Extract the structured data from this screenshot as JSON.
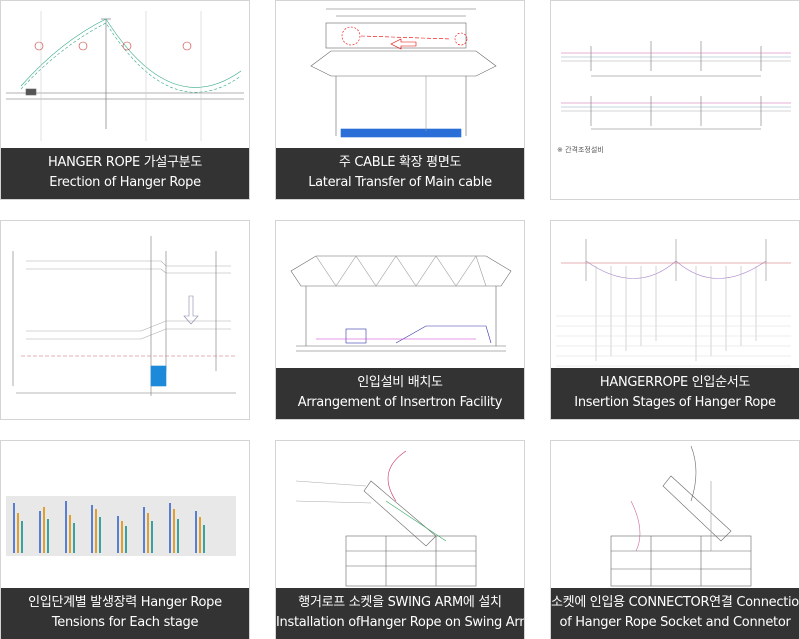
{
  "items": [
    {
      "caption": [
        "HANGER ROPE 가설구분도",
        "Erection of Hanger Rope"
      ]
    },
    {
      "caption": [
        "주 CABLE 확장 평면도",
        "Lateral Transfer of Main cable"
      ]
    },
    {
      "note": "※ 간격조정설비"
    },
    {},
    {
      "caption": [
        "인입설비 배치도",
        "Arrangement of Insertron Facility"
      ]
    },
    {
      "caption": [
        "HANGERROPE 인입순서도",
        "Insertion Stages of Hanger Rope"
      ]
    },
    {
      "caption": [
        "인입단계별 발생장력 Hanger Rope",
        "Tensions for Each stage"
      ]
    },
    {
      "caption": [
        "행거로프 소켓을 SWING ARM에 설치",
        "Installation ofHanger Rope on Swing Arm"
      ]
    },
    {
      "caption": [
        "소켓에 인입용 CONNECTOR연결 Connection",
        "of Hanger Rope Socket and Connetor"
      ]
    }
  ]
}
